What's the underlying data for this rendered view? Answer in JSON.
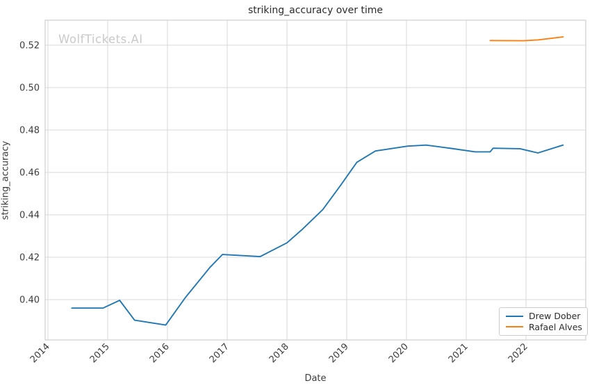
{
  "watermark": "WolfTickets.AI",
  "chart_data": {
    "type": "line",
    "title": "striking_accuracy over time",
    "xlabel": "Date",
    "ylabel": "striking_accuracy",
    "xlim": [
      2013.953,
      2023.0
    ],
    "ylim": [
      0.381,
      0.5318
    ],
    "grid": true,
    "legend_position": "lower right",
    "x_ticks": [
      2014,
      2015,
      2016,
      2017,
      2018,
      2019,
      2020,
      2021,
      2022
    ],
    "x_tick_labels": [
      "2014",
      "2015",
      "2016",
      "2017",
      "2018",
      "2019",
      "2020",
      "2021",
      "2022"
    ],
    "y_ticks": [
      0.4,
      0.42,
      0.44,
      0.46,
      0.48,
      0.5,
      0.52
    ],
    "y_tick_labels": [
      "0.40",
      "0.42",
      "0.44",
      "0.46",
      "0.48",
      "0.50",
      "0.52"
    ],
    "series": [
      {
        "name": "Drew Dober",
        "color": "#1f77b4",
        "x": [
          2014.4,
          2014.92,
          2015.2,
          2015.45,
          2015.97,
          2016.3,
          2016.71,
          2016.92,
          2017.55,
          2018.0,
          2018.25,
          2018.6,
          2018.9,
          2019.17,
          2019.48,
          2020.02,
          2020.33,
          2020.75,
          2021.15,
          2021.4,
          2021.45,
          2021.9,
          2022.2,
          2022.62
        ],
        "y": [
          0.396,
          0.396,
          0.3997,
          0.3903,
          0.388,
          0.401,
          0.4152,
          0.4213,
          0.4203,
          0.4268,
          0.433,
          0.4425,
          0.454,
          0.4648,
          0.4701,
          0.4724,
          0.4729,
          0.4713,
          0.4697,
          0.4697,
          0.4714,
          0.4712,
          0.4692,
          0.4729
        ]
      },
      {
        "name": "Rafael Alves",
        "color": "#ff7f0e",
        "x": [
          2021.4,
          2021.95,
          2022.2,
          2022.62
        ],
        "y": [
          0.5222,
          0.5221,
          0.5225,
          0.5239
        ]
      }
    ]
  },
  "legend": {
    "items": [
      {
        "label": "Drew Dober",
        "color": "#1f77b4"
      },
      {
        "label": "Rafael Alves",
        "color": "#ff7f0e"
      }
    ]
  },
  "style": {
    "grid_color": "#d9d9d9",
    "spine_color": "#cfcfcf",
    "tick_label_color": "#3d3d3d",
    "watermark_color": "#c9c9c9"
  }
}
